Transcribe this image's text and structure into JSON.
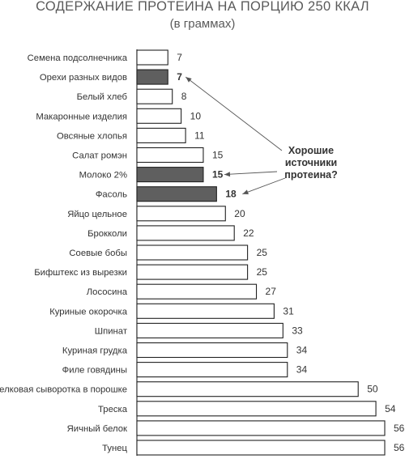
{
  "chart_data": {
    "type": "bar",
    "orientation": "horizontal",
    "title": "СОДЕРЖАНИЕ ПРОТЕИНА НА ПОРЦИЮ 250 ККАЛ",
    "subtitle": "(в граммах)",
    "categories": [
      "Семена подсолнечника",
      "Орехи разных видов",
      "Белый хлеб",
      "Макаронные изделия",
      "Овсяные хлопья",
      "Салат ромэн",
      "Молоко 2%",
      "Фасоль",
      "Яйцо цельное",
      "Брокколи",
      "Соевые бобы",
      "Бифштекс из вырезки",
      "Лососина",
      "Куриные окорочка",
      "Шпинат",
      "Куриная грудка",
      "Филе говядины",
      "Белковая сыворотка в порошке",
      "Треска",
      "Яичный белок",
      "Тунец"
    ],
    "values": [
      7,
      7,
      8,
      10,
      11,
      15,
      15,
      18,
      20,
      22,
      25,
      25,
      27,
      31,
      33,
      34,
      34,
      50,
      54,
      56,
      56
    ],
    "highlighted": [
      "Орехи разных видов",
      "Молоко 2%",
      "Фасоль"
    ],
    "annotation": [
      "Хорошие",
      "источники",
      "протеина?"
    ],
    "xlim": [
      0,
      56
    ],
    "grid": false,
    "colors": {
      "bar_fill": "#ffffff",
      "highlight_fill": "#5f5f5f",
      "bar_stroke": "#222222"
    }
  }
}
